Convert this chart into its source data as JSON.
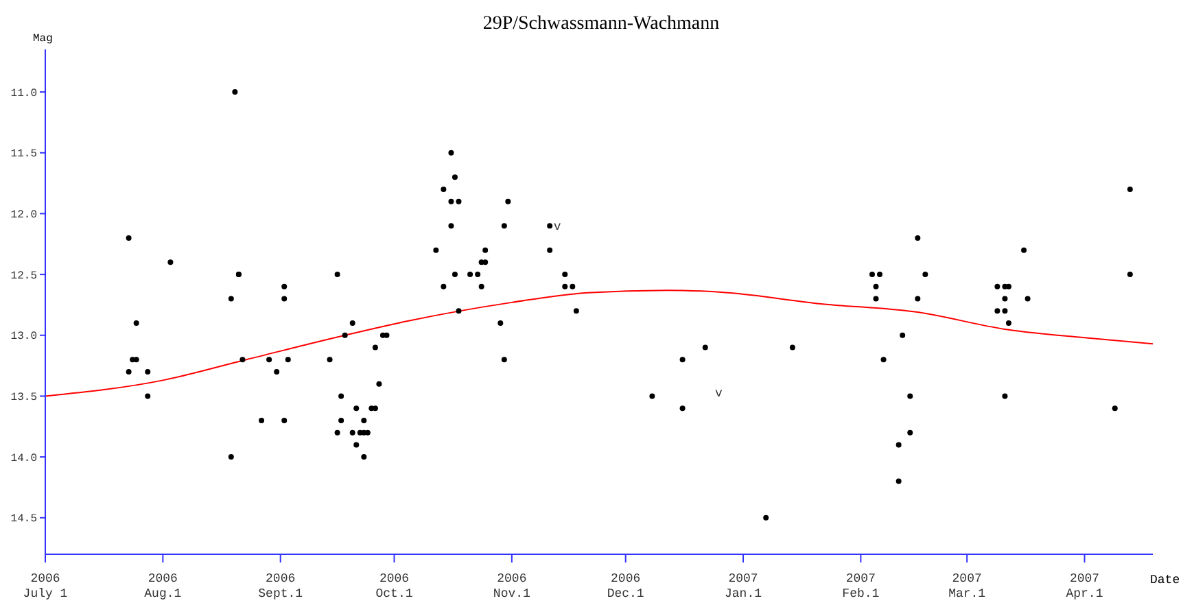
{
  "chart_data": {
    "type": "scatter",
    "title": "29P/Schwassmann-Wachmann",
    "xlabel": "Date",
    "ylabel": "Mag",
    "xlim": [
      "2006-07-01",
      "2007-04-19"
    ],
    "ylim": [
      14.8,
      10.65
    ],
    "xticks": [
      {
        "value": "2006-07-01",
        "label": "2006\nJuly 1"
      },
      {
        "value": "2006-08-01",
        "label": "2006\nAug.1"
      },
      {
        "value": "2006-09-01",
        "label": "2006\nSept.1"
      },
      {
        "value": "2006-10-01",
        "label": "2006\nOct.1"
      },
      {
        "value": "2006-11-01",
        "label": "2006\nNov.1"
      },
      {
        "value": "2006-12-01",
        "label": "2006\nDec.1"
      },
      {
        "value": "2007-01-01",
        "label": "2007\nJan.1"
      },
      {
        "value": "2007-02-01",
        "label": "2007\nFeb.1"
      },
      {
        "value": "2007-03-01",
        "label": "2007\nMar.1"
      },
      {
        "value": "2007-04-01",
        "label": "2007\nApr.1"
      }
    ],
    "yticks": [
      {
        "value": 11,
        "label": "11.0"
      },
      11.5,
      {
        "value": 12,
        "label": "12.0"
      },
      12.5,
      {
        "value": 13,
        "label": "13.0"
      },
      13.5,
      {
        "value": 14,
        "label": "14.0"
      },
      14.5
    ],
    "grid": false,
    "marker": "circle",
    "series": [
      {
        "type": "scatter",
        "color": "#000000",
        "x": [
          "2006-07-23",
          "2006-07-23",
          "2006-07-24",
          "2006-07-25",
          "2006-07-25",
          "2006-07-28",
          "2006-07-28",
          "2006-08-03",
          "2006-08-19",
          "2006-08-19",
          "2006-08-20",
          "2006-08-21",
          "2006-08-21",
          "2006-08-22",
          "2006-08-27",
          "2006-08-29",
          "2006-08-31",
          "2006-09-02",
          "2006-09-02",
          "2006-09-02",
          "2006-09-03",
          "2006-09-14",
          "2006-09-16",
          "2006-09-16",
          "2006-09-17",
          "2006-09-17",
          "2006-09-18",
          "2006-09-20",
          "2006-09-20",
          "2006-09-21",
          "2006-09-21",
          "2006-09-22",
          "2006-09-23",
          "2006-09-23",
          "2006-09-23",
          "2006-09-24",
          "2006-09-25",
          "2006-09-26",
          "2006-09-26",
          "2006-09-27",
          "2006-09-28",
          "2006-09-29",
          "2006-10-12",
          "2006-10-14",
          "2006-10-14",
          "2006-10-16",
          "2006-10-16",
          "2006-10-16",
          "2006-10-17",
          "2006-10-17",
          "2006-10-18",
          "2006-10-18",
          "2006-10-21",
          "2006-10-23",
          "2006-10-24",
          "2006-10-24",
          "2006-10-25",
          "2006-10-25",
          "2006-10-29",
          "2006-10-30",
          "2006-10-30",
          "2006-10-31",
          "2006-11-11",
          "2006-11-11",
          "2006-11-15",
          "2006-11-15",
          "2006-11-17",
          "2006-11-18",
          "2006-12-08",
          "2006-12-16",
          "2006-12-16",
          "2006-12-22",
          "2007-01-07",
          "2007-01-14",
          "2007-02-04",
          "2007-02-05",
          "2007-02-05",
          "2007-02-06",
          "2007-02-07",
          "2007-02-11",
          "2007-02-11",
          "2007-02-12",
          "2007-02-14",
          "2007-02-14",
          "2007-02-16",
          "2007-02-16",
          "2007-02-18",
          "2007-03-09",
          "2007-03-09",
          "2007-03-11",
          "2007-03-11",
          "2007-03-11",
          "2007-03-11",
          "2007-03-12",
          "2007-03-12",
          "2007-03-16",
          "2007-03-17",
          "2007-04-09",
          "2007-04-13",
          "2007-04-13"
        ],
        "values": [
          12.2,
          13.3,
          13.2,
          13.2,
          12.9,
          13.3,
          13.5,
          12.4,
          12.7,
          14.0,
          11.0,
          12.5,
          12.5,
          13.2,
          13.7,
          13.2,
          13.3,
          12.6,
          12.7,
          13.7,
          13.2,
          13.2,
          12.5,
          13.8,
          13.5,
          13.7,
          13.0,
          13.8,
          12.9,
          13.6,
          13.9,
          13.8,
          14.0,
          13.7,
          13.8,
          13.8,
          13.6,
          13.6,
          13.1,
          13.4,
          13.0,
          13.0,
          12.3,
          12.6,
          11.8,
          11.9,
          11.5,
          12.1,
          11.7,
          12.5,
          11.9,
          12.8,
          12.5,
          12.5,
          12.4,
          12.6,
          12.4,
          12.3,
          12.9,
          13.2,
          12.1,
          11.9,
          12.1,
          12.3,
          12.5,
          12.6,
          12.6,
          12.8,
          13.5,
          13.2,
          13.6,
          13.1,
          14.5,
          13.1,
          12.5,
          12.6,
          12.7,
          12.5,
          13.2,
          13.9,
          14.2,
          13.0,
          13.5,
          13.8,
          12.2,
          12.7,
          12.5,
          12.6,
          12.8,
          12.6,
          12.7,
          12.8,
          13.5,
          12.6,
          12.9,
          12.3,
          12.7,
          13.6,
          12.5,
          11.8
        ]
      },
      {
        "type": "line",
        "color": "#ff0000",
        "marker": "none",
        "x": [
          "2006-07-01",
          "2006-08-01",
          "2006-08-23",
          "2006-09-18",
          "2006-10-05",
          "2006-11-01",
          "2006-11-21",
          "2006-12-12",
          "2006-12-28",
          "2007-01-21",
          "2007-02-16",
          "2007-03-11",
          "2007-04-01",
          "2007-04-19"
        ],
        "values": [
          13.5,
          13.37,
          13.2,
          13.0,
          12.88,
          12.73,
          12.65,
          12.63,
          12.65,
          12.74,
          12.81,
          12.95,
          13.02,
          13.07
        ]
      }
    ],
    "annotations": [
      {
        "text": "v",
        "x": "2006-11-13",
        "y": 12.1
      },
      "v"
    ]
  }
}
